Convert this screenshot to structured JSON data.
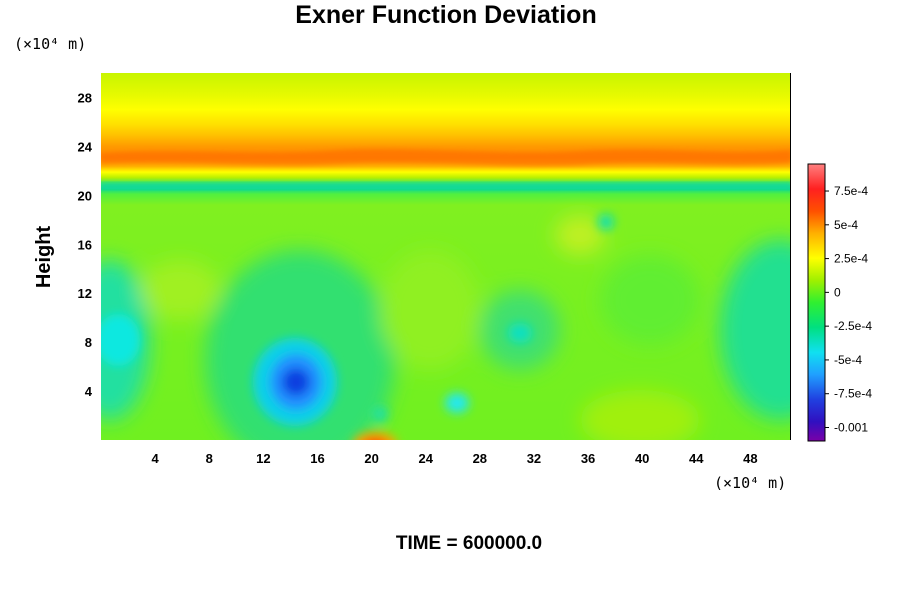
{
  "chart_data": {
    "type": "heatmap",
    "title": "Exner Function Deviation",
    "ylabel": "Height",
    "xlabel": "",
    "x_unit": "(×10⁴ m)",
    "y_unit": "(×10⁴ m)",
    "xlim": [
      0,
      51
    ],
    "ylim": [
      0,
      30
    ],
    "x_ticks": [
      4,
      8,
      12,
      16,
      20,
      24,
      28,
      32,
      36,
      40,
      44,
      48
    ],
    "y_ticks": [
      4,
      8,
      12,
      16,
      20,
      24,
      28
    ],
    "colorbar": {
      "range": [
        -0.0011,
        0.00095
      ],
      "ticks": [
        {
          "value": 0.00075,
          "label": "7.5e-4"
        },
        {
          "value": 0.0005,
          "label": "5e-4"
        },
        {
          "value": 0.00025,
          "label": "2.5e-4"
        },
        {
          "value": 0,
          "label": "0"
        },
        {
          "value": -0.00025,
          "label": "-2.5e-4"
        },
        {
          "value": -0.0005,
          "label": "-5e-4"
        },
        {
          "value": -0.00075,
          "label": "-7.5e-4"
        },
        {
          "value": -0.001,
          "label": "-0.001"
        }
      ]
    },
    "field_description_features": [
      {
        "kind": "band",
        "y_range": [
          21.5,
          26
        ],
        "value": 0.0005
      },
      {
        "kind": "band",
        "y_range": [
          26,
          30
        ],
        "value": 0.00025
      },
      {
        "kind": "band",
        "y_range": [
          20.3,
          21.2
        ],
        "value": -0.0002
      },
      {
        "kind": "minimum",
        "x": 14.5,
        "y": 4.5,
        "value": -0.00085
      },
      {
        "kind": "minimum",
        "x": 1.5,
        "y": 8.5,
        "value": -0.0005
      },
      {
        "kind": "minimum",
        "x": 50.5,
        "y": 9.5,
        "value": -0.0004
      },
      {
        "kind": "minimum",
        "x": 26.5,
        "y": 3,
        "value": -0.0005
      },
      {
        "kind": "maximum",
        "x": 20.5,
        "y": 0,
        "value": 0.0007
      }
    ],
    "colors": {
      "scale": [
        "#7a00a8",
        "#2020d0",
        "#2080ff",
        "#10e0e0",
        "#00e070",
        "#40f040",
        "#b0f000",
        "#ffff00",
        "#ff9000",
        "#ff2000",
        "#ff8080"
      ]
    }
  },
  "footer": {
    "time_label": "TIME = 600000.0"
  }
}
